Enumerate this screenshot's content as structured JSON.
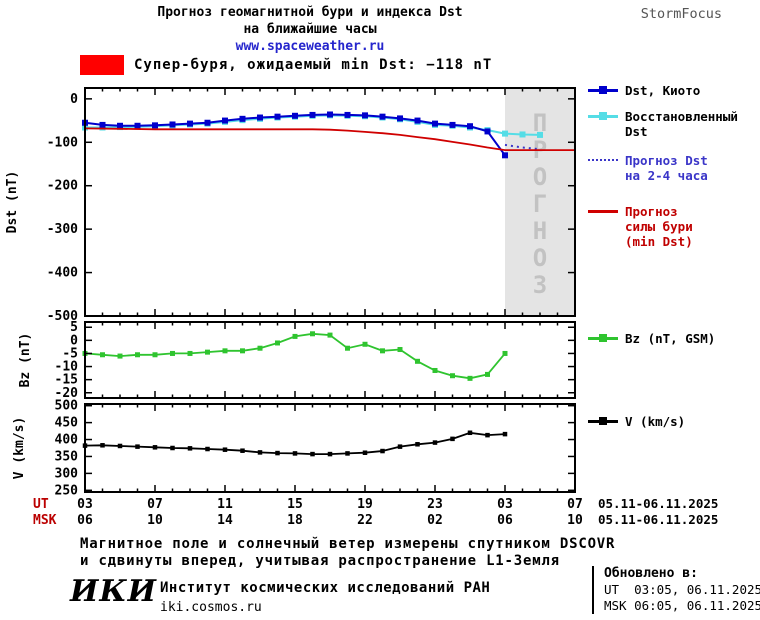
{
  "header": {
    "title_line1": "Прогноз геомагнитной бури и индекса Dst",
    "title_line2": "на ближайшие часы",
    "site": "www.spaceweather.ru",
    "brand": "StormFocus"
  },
  "alert": {
    "text": "Супер-буря, ожидаемый min Dst: −118 nT",
    "color": "#ff0000"
  },
  "legend": {
    "kyoto": {
      "lines": [
        "Dst, Киото"
      ],
      "color": "#000000"
    },
    "restored": {
      "lines": [
        "Восстановленный",
        "Dst"
      ],
      "color": "#000000"
    },
    "forecast": {
      "lines": [
        "Прогноз Dst",
        "на 2-4 часа"
      ],
      "color": "#3a35c8"
    },
    "storm": {
      "lines": [
        "Прогноз",
        "силы бури",
        "(min Dst)"
      ],
      "color": "#c00000"
    },
    "bz": {
      "lines": [
        "Bz (nT, GSM)"
      ],
      "color": "#000000"
    },
    "v": {
      "lines": [
        "V (km/s)"
      ],
      "color": "#000000"
    }
  },
  "footer": {
    "note_line1": "Магнитное поле и солнечный ветер измерены спутником DSCOVR",
    "note_line2": "и сдвинуты вперед, учитывая распространение L1-Земля",
    "logo": "ИКИ",
    "institute": "Институт космических исследований РАН",
    "site": "iki.cosmos.ru",
    "updated_label": "Обновлено в:",
    "updated_ut": "UT  03:05, 06.11.2025",
    "updated_msk": "MSK 06:05, 06.11.2025"
  },
  "chart_data": {
    "type": "line",
    "x_domain": [
      3,
      31
    ],
    "x_ticks": [
      3,
      7,
      11,
      15,
      19,
      23,
      27,
      31
    ],
    "ut_axis_label": "UT",
    "msk_axis_label": "MSK",
    "axis_label_color": "#bb0000",
    "ut_tick_labels": [
      "03",
      "07",
      "11",
      "15",
      "19",
      "23",
      "03",
      "07"
    ],
    "msk_tick_labels": [
      "06",
      "10",
      "14",
      "18",
      "22",
      "02",
      "06",
      "10"
    ],
    "ut_date_range": "05.11-06.11.2025",
    "msk_date_range": "05.11-06.11.2025",
    "forecast_region": {
      "x_start": 27,
      "x_end": 31,
      "label": "ПРОГНОЗ",
      "fill": "#e4e4e4",
      "label_color": "#c2c2c2"
    },
    "panels": [
      {
        "id": "dst",
        "ylabel": "Dst (nT)",
        "y_domain": [
          -500,
          25
        ],
        "y_ticks": [
          0,
          -100,
          -200,
          -300,
          -400,
          -500
        ]
      },
      {
        "id": "bz",
        "ylabel": "Bz (nT)",
        "y_domain": [
          -22,
          7
        ],
        "y_ticks": [
          5,
          0,
          -5,
          -10,
          -15,
          -20
        ]
      },
      {
        "id": "v",
        "ylabel": "V (km/s)",
        "y_domain": [
          245,
          505
        ],
        "y_ticks": [
          500,
          450,
          400,
          350,
          300,
          250
        ]
      }
    ],
    "series": [
      {
        "key": "restored",
        "panel": "dst",
        "label": "Восстановленный Dst",
        "color": "#55dde6",
        "width": 2,
        "marker": true,
        "marker_size": 6,
        "points": [
          [
            3,
            -66
          ],
          [
            4,
            -66
          ],
          [
            5,
            -65
          ],
          [
            6,
            -64
          ],
          [
            7,
            -63
          ],
          [
            8,
            -61
          ],
          [
            9,
            -59
          ],
          [
            10,
            -57
          ],
          [
            11,
            -53
          ],
          [
            12,
            -49
          ],
          [
            13,
            -46
          ],
          [
            14,
            -43
          ],
          [
            15,
            -41
          ],
          [
            16,
            -39
          ],
          [
            17,
            -38
          ],
          [
            18,
            -39
          ],
          [
            19,
            -40
          ],
          [
            20,
            -43
          ],
          [
            21,
            -47
          ],
          [
            22,
            -53
          ],
          [
            23,
            -60
          ],
          [
            24,
            -62
          ],
          [
            25,
            -66
          ],
          [
            26,
            -72
          ],
          [
            27,
            -80
          ],
          [
            28,
            -82
          ],
          [
            29,
            -83
          ]
        ]
      },
      {
        "key": "kyoto",
        "panel": "dst",
        "label": "Dst, Киото",
        "color": "#0000cc",
        "width": 2,
        "marker": true,
        "marker_size": 6,
        "points": [
          [
            3,
            -55
          ],
          [
            4,
            -60
          ],
          [
            5,
            -62
          ],
          [
            6,
            -62
          ],
          [
            7,
            -61
          ],
          [
            8,
            -59
          ],
          [
            9,
            -57
          ],
          [
            10,
            -55
          ],
          [
            11,
            -50
          ],
          [
            12,
            -46
          ],
          [
            13,
            -43
          ],
          [
            14,
            -41
          ],
          [
            15,
            -39
          ],
          [
            16,
            -37
          ],
          [
            17,
            -36
          ],
          [
            18,
            -37
          ],
          [
            19,
            -38
          ],
          [
            20,
            -41
          ],
          [
            21,
            -45
          ],
          [
            22,
            -50
          ],
          [
            23,
            -57
          ],
          [
            24,
            -60
          ],
          [
            25,
            -63
          ],
          [
            26,
            -75
          ],
          [
            27,
            -130
          ]
        ]
      },
      {
        "key": "forecast",
        "panel": "dst",
        "label": "Прогноз Dst на 2-4 часа",
        "color": "#3a35c8",
        "width": 2,
        "dash": "2,4",
        "marker": false,
        "points": [
          [
            27,
            -106
          ],
          [
            28,
            -112
          ],
          [
            29,
            -116
          ]
        ]
      },
      {
        "key": "storm",
        "panel": "dst",
        "label": "Прогноз силы бури (min Dst)",
        "color": "#d00000",
        "width": 1.8,
        "marker": false,
        "points": [
          [
            3,
            -68
          ],
          [
            5,
            -69
          ],
          [
            7,
            -70
          ],
          [
            9,
            -70
          ],
          [
            11,
            -70
          ],
          [
            13,
            -70
          ],
          [
            15,
            -70
          ],
          [
            16,
            -70
          ],
          [
            17,
            -71
          ],
          [
            18,
            -73
          ],
          [
            19,
            -76
          ],
          [
            20,
            -79
          ],
          [
            21,
            -83
          ],
          [
            22,
            -88
          ],
          [
            23,
            -93
          ],
          [
            24,
            -99
          ],
          [
            25,
            -105
          ],
          [
            26,
            -112
          ],
          [
            27,
            -118
          ],
          [
            31,
            -118
          ]
        ]
      },
      {
        "key": "bz",
        "panel": "bz",
        "label": "Bz (nT, GSM)",
        "color": "#2fc42f",
        "width": 1.8,
        "marker": true,
        "marker_size": 5,
        "points": [
          [
            3,
            -5
          ],
          [
            4,
            -5.5
          ],
          [
            5,
            -6
          ],
          [
            6,
            -5.5
          ],
          [
            7,
            -5.5
          ],
          [
            8,
            -5
          ],
          [
            9,
            -5
          ],
          [
            10,
            -4.5
          ],
          [
            11,
            -4
          ],
          [
            12,
            -4
          ],
          [
            13,
            -3
          ],
          [
            14,
            -1
          ],
          [
            15,
            1.5
          ],
          [
            16,
            2.5
          ],
          [
            17,
            2
          ],
          [
            18,
            -3
          ],
          [
            19,
            -1.5
          ],
          [
            20,
            -4
          ],
          [
            21,
            -3.5
          ],
          [
            22,
            -8
          ],
          [
            23,
            -11.5
          ],
          [
            24,
            -13.5
          ],
          [
            25,
            -14.5
          ],
          [
            26,
            -13
          ],
          [
            27,
            -5
          ]
        ]
      },
      {
        "key": "v",
        "panel": "v",
        "label": "V (km/s)",
        "color": "#000000",
        "width": 1.8,
        "marker": true,
        "marker_size": 4.5,
        "points": [
          [
            3,
            382
          ],
          [
            4,
            383
          ],
          [
            5,
            381
          ],
          [
            6,
            379
          ],
          [
            7,
            377
          ],
          [
            8,
            375
          ],
          [
            9,
            374
          ],
          [
            10,
            372
          ],
          [
            11,
            370
          ],
          [
            12,
            367
          ],
          [
            13,
            362
          ],
          [
            14,
            360
          ],
          [
            15,
            359
          ],
          [
            16,
            357
          ],
          [
            17,
            357
          ],
          [
            18,
            359
          ],
          [
            19,
            361
          ],
          [
            20,
            366
          ],
          [
            21,
            379
          ],
          [
            22,
            386
          ],
          [
            23,
            391
          ],
          [
            24,
            402
          ],
          [
            25,
            420
          ],
          [
            26,
            413
          ],
          [
            27,
            416
          ]
        ]
      }
    ]
  }
}
